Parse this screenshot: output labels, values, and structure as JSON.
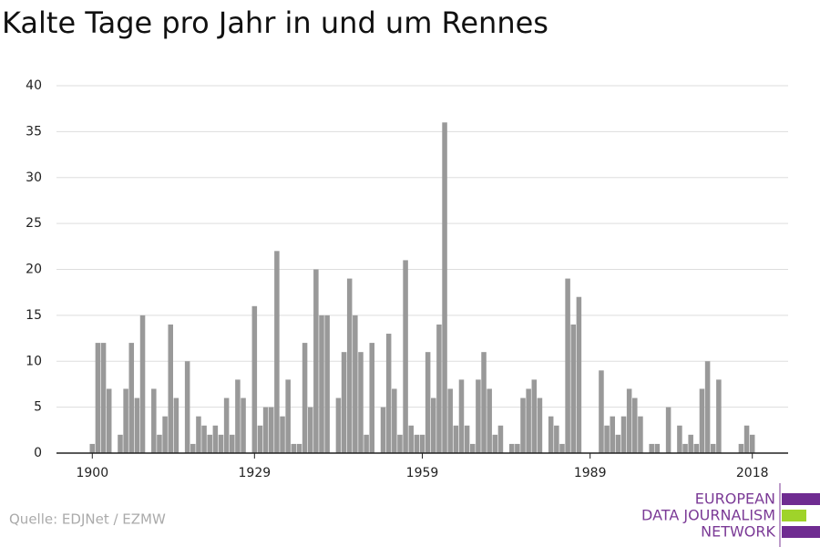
{
  "chart_data": {
    "type": "bar",
    "title": "Kalte Tage pro Jahr in und um Rennes",
    "x": [
      1900,
      1901,
      1902,
      1903,
      1904,
      1905,
      1906,
      1907,
      1908,
      1909,
      1910,
      1911,
      1912,
      1913,
      1914,
      1915,
      1916,
      1917,
      1918,
      1919,
      1920,
      1921,
      1922,
      1923,
      1924,
      1925,
      1926,
      1927,
      1928,
      1929,
      1930,
      1931,
      1932,
      1933,
      1934,
      1935,
      1936,
      1937,
      1938,
      1939,
      1940,
      1941,
      1942,
      1943,
      1944,
      1945,
      1946,
      1947,
      1948,
      1949,
      1950,
      1951,
      1952,
      1953,
      1954,
      1955,
      1956,
      1957,
      1958,
      1959,
      1960,
      1961,
      1962,
      1963,
      1964,
      1965,
      1966,
      1967,
      1968,
      1969,
      1970,
      1971,
      1972,
      1973,
      1974,
      1975,
      1976,
      1977,
      1978,
      1979,
      1980,
      1981,
      1982,
      1983,
      1984,
      1985,
      1986,
      1987,
      1988,
      1989,
      1990,
      1991,
      1992,
      1993,
      1994,
      1995,
      1996,
      1997,
      1998,
      1999,
      2000,
      2001,
      2002,
      2003,
      2004,
      2005,
      2006,
      2007,
      2008,
      2009,
      2010,
      2011,
      2012,
      2013,
      2014,
      2015,
      2016,
      2017,
      2018
    ],
    "values": [
      1,
      12,
      12,
      7,
      0,
      2,
      7,
      12,
      6,
      15,
      0,
      7,
      2,
      4,
      14,
      6,
      0,
      10,
      1,
      4,
      3,
      2,
      3,
      2,
      6,
      2,
      8,
      6,
      0,
      16,
      3,
      5,
      5,
      22,
      4,
      8,
      1,
      1,
      12,
      5,
      20,
      15,
      15,
      0,
      6,
      11,
      19,
      15,
      11,
      2,
      12,
      0,
      5,
      13,
      7,
      2,
      21,
      3,
      2,
      2,
      11,
      6,
      14,
      36,
      7,
      3,
      8,
      3,
      1,
      8,
      11,
      7,
      2,
      3,
      0,
      1,
      1,
      6,
      7,
      8,
      6,
      0,
      4,
      3,
      1,
      19,
      14,
      17,
      0,
      0,
      0,
      9,
      3,
      4,
      2,
      4,
      7,
      6,
      4,
      0,
      1,
      1,
      0,
      5,
      0,
      3,
      1,
      2,
      1,
      7,
      10,
      1,
      8,
      0,
      0,
      0,
      1,
      3,
      2
    ],
    "color": "#999999",
    "xlim": [
      1893.6,
      2024.4
    ],
    "xticks": [
      1900,
      1929,
      1959,
      1989,
      2018
    ],
    "ylim": [
      0,
      40
    ],
    "yticks": [
      0,
      5,
      10,
      15,
      20,
      25,
      30,
      35,
      40
    ],
    "grid": true
  },
  "source": "Quelle: EDJNet / EZMW",
  "logo": [
    "EUROPEAN",
    "DATA JOURNALISM",
    "NETWORK"
  ]
}
